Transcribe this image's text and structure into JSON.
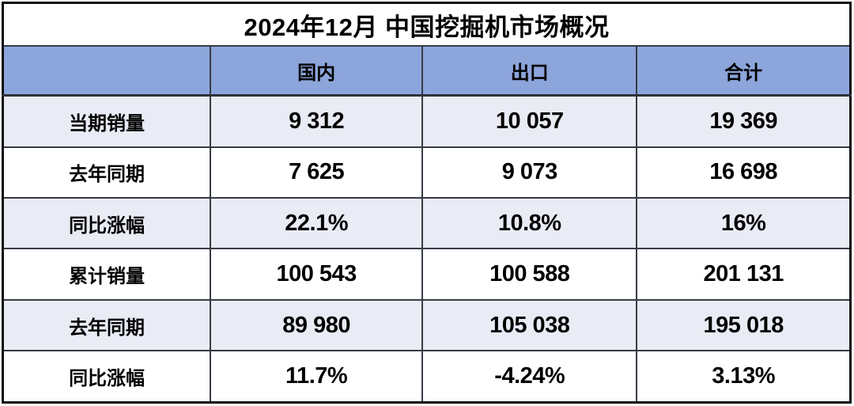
{
  "title": "2024年12月 中国挖掘机市场概况",
  "table": {
    "columns": [
      "",
      "国内",
      "出口",
      "合计"
    ],
    "rows": [
      {
        "label": "当期销量",
        "values": [
          "9 312",
          "10 057",
          "19 369"
        ]
      },
      {
        "label": "去年同期",
        "values": [
          "7 625",
          "9 073",
          "16 698"
        ]
      },
      {
        "label": "同比涨幅",
        "values": [
          "22.1%",
          "10.8%",
          "16%"
        ]
      },
      {
        "label": "累计销量",
        "values": [
          "100 543",
          "100 588",
          "201 131"
        ]
      },
      {
        "label": "去年同期",
        "values": [
          "89 980",
          "105 038",
          "195 018"
        ]
      },
      {
        "label": "同比涨幅",
        "values": [
          "11.7%",
          "-4.24%",
          "3.13%"
        ]
      }
    ]
  },
  "chart_data": {
    "type": "table",
    "title": "2024年12月 中国挖掘机市场概况",
    "columns": [
      "国内",
      "出口",
      "合计"
    ],
    "rows": [
      {
        "label": "当期销量",
        "values": [
          9312,
          10057,
          19369
        ]
      },
      {
        "label": "去年同期",
        "values": [
          7625,
          9073,
          16698
        ]
      },
      {
        "label": "同比涨幅",
        "values": [
          "22.1%",
          "10.8%",
          "16%"
        ]
      },
      {
        "label": "累计销量",
        "values": [
          100543,
          100588,
          201131
        ]
      },
      {
        "label": "去年同期",
        "values": [
          89980,
          105038,
          195018
        ]
      },
      {
        "label": "同比涨幅",
        "values": [
          "11.7%",
          "-4.24%",
          "3.13%"
        ]
      }
    ],
    "layout_hints": {
      "header_row_shaded": true,
      "alternating_row_shading": true,
      "number_format": "space thousands separator"
    }
  },
  "colors": {
    "header_bg": "#8CA5DB",
    "row_alt_bg": "#E9EBF5",
    "row_bg": "#FFFFFF",
    "inner_border": "#373B44",
    "outer_border": "#0A0A0A",
    "text": "#000000"
  }
}
